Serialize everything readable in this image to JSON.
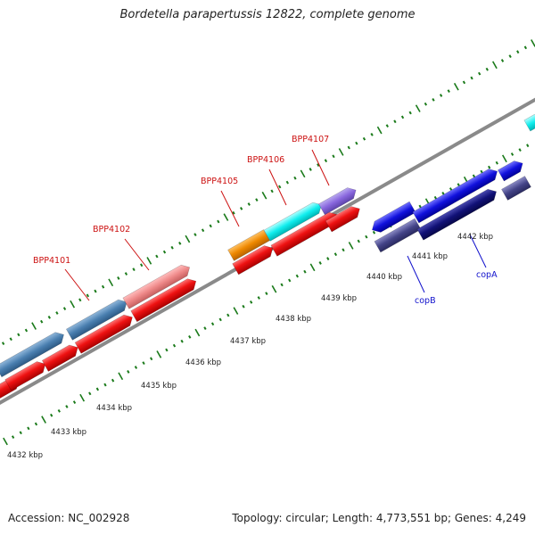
{
  "title": "Bordetella parapertussis 12822, complete genome",
  "footer": {
    "accession": "Accession: NC_002928",
    "summary": "Topology: circular; Length: 4,773,551 bp; Genes: 4,249"
  },
  "map": {
    "scale_labels": [
      "4432 kbp",
      "4433 kbp",
      "4434 kbp",
      "4435 kbp",
      "4436 kbp",
      "4437 kbp",
      "4438 kbp",
      "4439 kbp",
      "4440 kbp",
      "4441 kbp",
      "4442 kbp"
    ],
    "red_gene_labels": [
      "BPP4101",
      "BPP4102",
      "BPP4105",
      "BPP4106",
      "BPP4107"
    ],
    "blue_gene_labels": [
      "copB",
      "copA"
    ],
    "colors": {
      "backbone": "#888888",
      "tick": "#1a7a1a",
      "red_gene": "#ee1111",
      "steel": "#4a7fb0",
      "pink": "#ee8888",
      "orange": "#ee8800",
      "cyan": "#11eeee",
      "violet": "#8866dd",
      "blue": "#1111dd",
      "navy": "#111177",
      "slate": "#444488"
    }
  }
}
